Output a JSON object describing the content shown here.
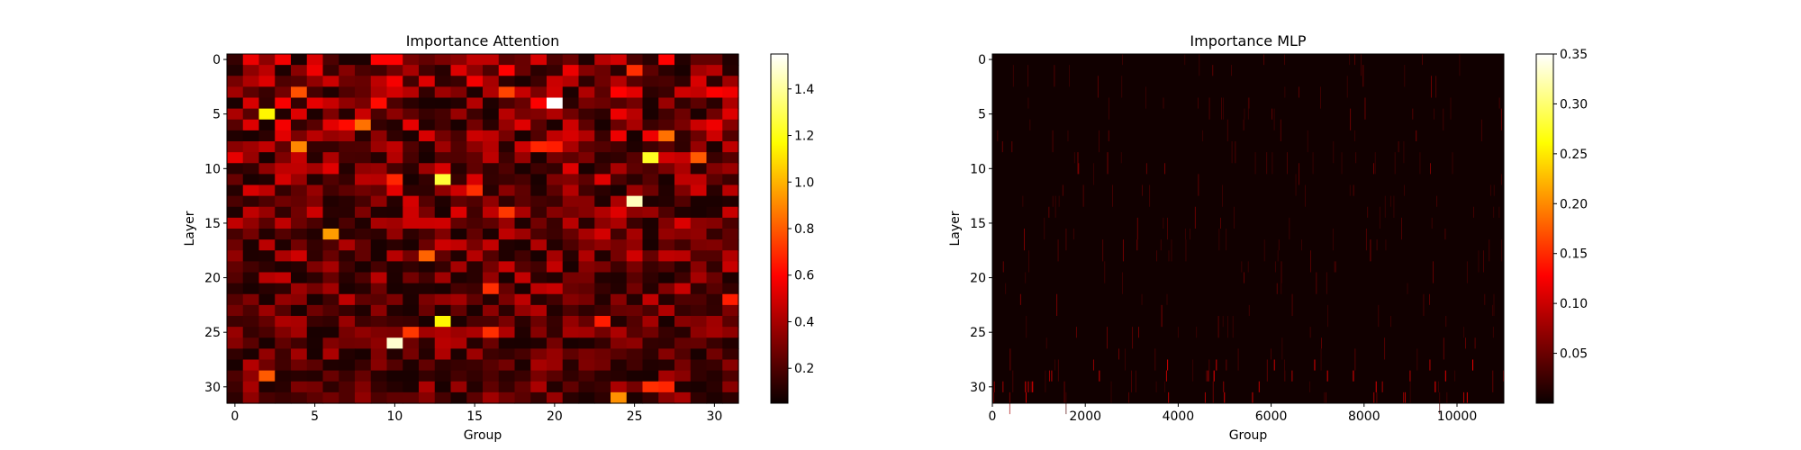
{
  "chart_data": [
    {
      "type": "heatmap",
      "title": "Importance Attention",
      "xlabel": "Group",
      "ylabel": "Layer",
      "rows": 32,
      "cols": 32,
      "xlim": [
        -0.5,
        31.5
      ],
      "ylim": [
        31.5,
        -0.5
      ],
      "xticks": [
        "0",
        "5",
        "10",
        "15",
        "20",
        "25",
        "30"
      ],
      "yticks": [
        "0",
        "5",
        "10",
        "15",
        "20",
        "25",
        "30"
      ],
      "colormap": "hot",
      "color_range": [
        0.05,
        1.55
      ],
      "colorbar_ticks": [
        "0.2",
        "0.4",
        "0.6",
        "0.8",
        "1.0",
        "1.2",
        "1.4"
      ],
      "highlights": [
        {
          "row": 4,
          "col": 20,
          "value": 1.55
        },
        {
          "row": 13,
          "col": 25,
          "value": 1.45
        },
        {
          "row": 26,
          "col": 10,
          "value": 1.48
        },
        {
          "row": 11,
          "col": 13,
          "value": 1.25
        },
        {
          "row": 9,
          "col": 26,
          "value": 1.22
        },
        {
          "row": 5,
          "col": 2,
          "value": 1.15
        },
        {
          "row": 24,
          "col": 13,
          "value": 1.15
        },
        {
          "row": 16,
          "col": 6,
          "value": 0.95
        },
        {
          "row": 31,
          "col": 24,
          "value": 0.92
        },
        {
          "row": 8,
          "col": 4,
          "value": 0.9
        },
        {
          "row": 6,
          "col": 8,
          "value": 0.85
        },
        {
          "row": 18,
          "col": 12,
          "value": 0.82
        },
        {
          "row": 7,
          "col": 27,
          "value": 0.85
        },
        {
          "row": 29,
          "col": 2,
          "value": 0.8
        },
        {
          "row": 9,
          "col": 29,
          "value": 0.8
        },
        {
          "row": 3,
          "col": 4,
          "value": 0.78
        },
        {
          "row": 3,
          "col": 17,
          "value": 0.75
        },
        {
          "row": 14,
          "col": 17,
          "value": 0.72
        },
        {
          "row": 21,
          "col": 16,
          "value": 0.7
        },
        {
          "row": 25,
          "col": 11,
          "value": 0.72
        },
        {
          "row": 25,
          "col": 16,
          "value": 0.7
        },
        {
          "row": 12,
          "col": 15,
          "value": 0.7
        },
        {
          "row": 11,
          "col": 10,
          "value": 0.68
        },
        {
          "row": 8,
          "col": 19,
          "value": 0.68
        },
        {
          "row": 8,
          "col": 20,
          "value": 0.66
        },
        {
          "row": 1,
          "col": 25,
          "value": 0.7
        },
        {
          "row": 24,
          "col": 23,
          "value": 0.66
        },
        {
          "row": 30,
          "col": 26,
          "value": 0.7
        },
        {
          "row": 30,
          "col": 27,
          "value": 0.68
        },
        {
          "row": 22,
          "col": 31,
          "value": 0.66
        },
        {
          "row": 4,
          "col": 9,
          "value": 0.62
        },
        {
          "row": 6,
          "col": 7,
          "value": 0.62
        }
      ]
    },
    {
      "type": "heatmap",
      "title": "Importance MLP",
      "xlabel": "Group",
      "ylabel": "Layer",
      "rows": 32,
      "cols": 11008,
      "xlim": [
        0,
        11008
      ],
      "ylim": [
        31.5,
        -0.5
      ],
      "xticks": [
        "0",
        "2000",
        "4000",
        "6000",
        "8000",
        "10000"
      ],
      "yticks": [
        "0",
        "5",
        "10",
        "15",
        "20",
        "25",
        "30"
      ],
      "colormap": "hot",
      "color_range": [
        0.0,
        0.35
      ],
      "colorbar_ticks": [
        "0.05",
        "0.10",
        "0.15",
        "0.20",
        "0.25",
        "0.30",
        "0.35"
      ]
    }
  ]
}
